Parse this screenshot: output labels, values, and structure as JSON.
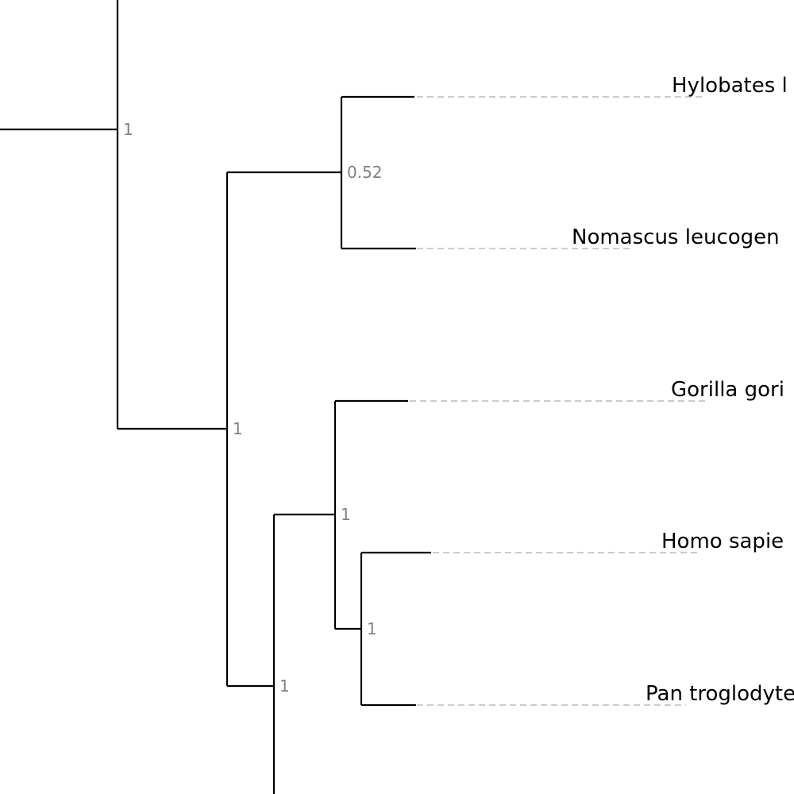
{
  "tree": {
    "leaves": [
      {
        "id": "hylobates",
        "label": "Hylobates l"
      },
      {
        "id": "nomascus",
        "label": "Nomascus leucogen"
      },
      {
        "id": "gorilla",
        "label": "Gorilla gori"
      },
      {
        "id": "homo",
        "label": "Homo sapie"
      },
      {
        "id": "pan",
        "label": "Pan troglodyte"
      }
    ],
    "internal_nodes": [
      {
        "id": "root",
        "support": "1",
        "children": [
          "upper-root-stem",
          "great-apes-clade"
        ]
      },
      {
        "id": "gibbon-clade",
        "support": "0.52",
        "children": [
          "hylobates",
          "nomascus"
        ]
      },
      {
        "id": "great-apes-clade",
        "support": "1",
        "children": [
          "gibbon-clade",
          "hominine-stem-clade"
        ]
      },
      {
        "id": "hominine-clade",
        "support": "1",
        "children": [
          "gorilla",
          "homo-pan-clade"
        ]
      },
      {
        "id": "homo-pan-clade",
        "support": "1",
        "children": [
          "homo",
          "pan"
        ]
      },
      {
        "id": "hominine-stem-clade",
        "support": "1",
        "children": [
          "hominine-clade",
          "lower-stem"
        ]
      }
    ]
  }
}
